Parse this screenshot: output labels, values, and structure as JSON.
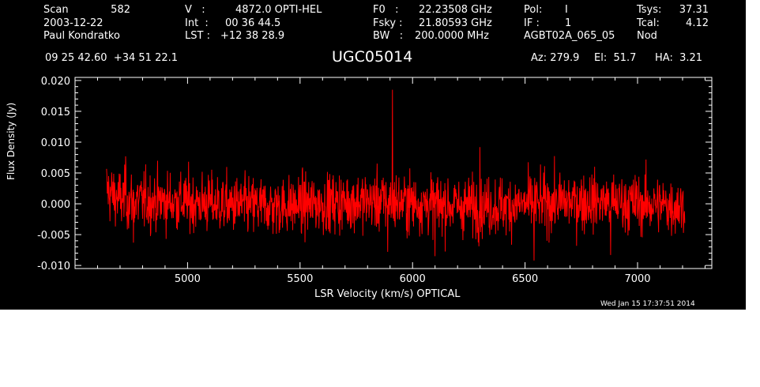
{
  "header": {
    "scan_label": "Scan",
    "scan_value": "582",
    "date": "2003-12-22",
    "observer": "Paul Kondratko",
    "v_label": "V   :",
    "v_value": "4872.0 OPTI-HEL",
    "int_label": "Int  :",
    "int_value": "00 36 44.5",
    "lst_label": "LST :",
    "lst_value": "+12 38 28.9",
    "f0_label": "F0   :",
    "f0_value": "22.23508 GHz",
    "fsky_label": "Fsky :",
    "fsky_value": "21.80593 GHz",
    "bw_label": "BW   :",
    "bw_value": "200.0000 MHz",
    "pol_label": "Pol:",
    "pol_value": "I",
    "if_label": "IF :",
    "if_value": "1",
    "project": "AGBT02A_065_05",
    "tsys_label": "Tsys:",
    "tsys_value": "37.31",
    "tcal_label": "Tcal:",
    "tcal_value": "4.12",
    "mode": "Nod",
    "coords": "09 25 42.60  +34 51 22.1",
    "source": "UGC05014",
    "az": "Az: 279.9",
    "el": "El:  51.7",
    "ha": "HA:  3.21"
  },
  "footer": {
    "timestamp": "Wed Jan 15 17:37:51 2014"
  },
  "chart_data": {
    "type": "line",
    "title": "UGC05014",
    "xlabel": "LSR Velocity (km/s) OPTICAL",
    "ylabel": "Flux Density (Jy)",
    "xlim": [
      4500,
      7330
    ],
    "ylim": [
      -0.0105,
      0.0205
    ],
    "x_ticks": [
      5000,
      5500,
      6000,
      6500,
      7000
    ],
    "x_tick_labels": [
      "5000",
      "5500",
      "6000",
      "6500",
      "7000"
    ],
    "y_ticks": [
      -0.01,
      -0.005,
      0.0,
      0.005,
      0.01,
      0.015,
      0.02
    ],
    "y_tick_labels": [
      "-0.010",
      "-0.005",
      "0.000",
      "0.005",
      "0.010",
      "0.015",
      "0.020"
    ],
    "grid": false,
    "colors": {
      "background": "#000000",
      "axes": "#ffffff",
      "series": "#ff0000"
    },
    "series": [
      {
        "x_start": 4640,
        "x_end": 7210,
        "noise_rms": 0.0028,
        "baseline_offset_at_start": 0.0025,
        "features": [
          {
            "x": 5910,
            "y": 0.0185
          },
          {
            "x": 6300,
            "y": 0.0092
          },
          {
            "x": 6540,
            "y": -0.0092
          },
          {
            "x": 6100,
            "y": -0.0085
          },
          {
            "x": 5890,
            "y": -0.0078
          },
          {
            "x": 4725,
            "y": 0.0077
          },
          {
            "x": 4760,
            "y": -0.0063
          },
          {
            "x": 6880,
            "y": -0.0083
          }
        ]
      }
    ]
  }
}
